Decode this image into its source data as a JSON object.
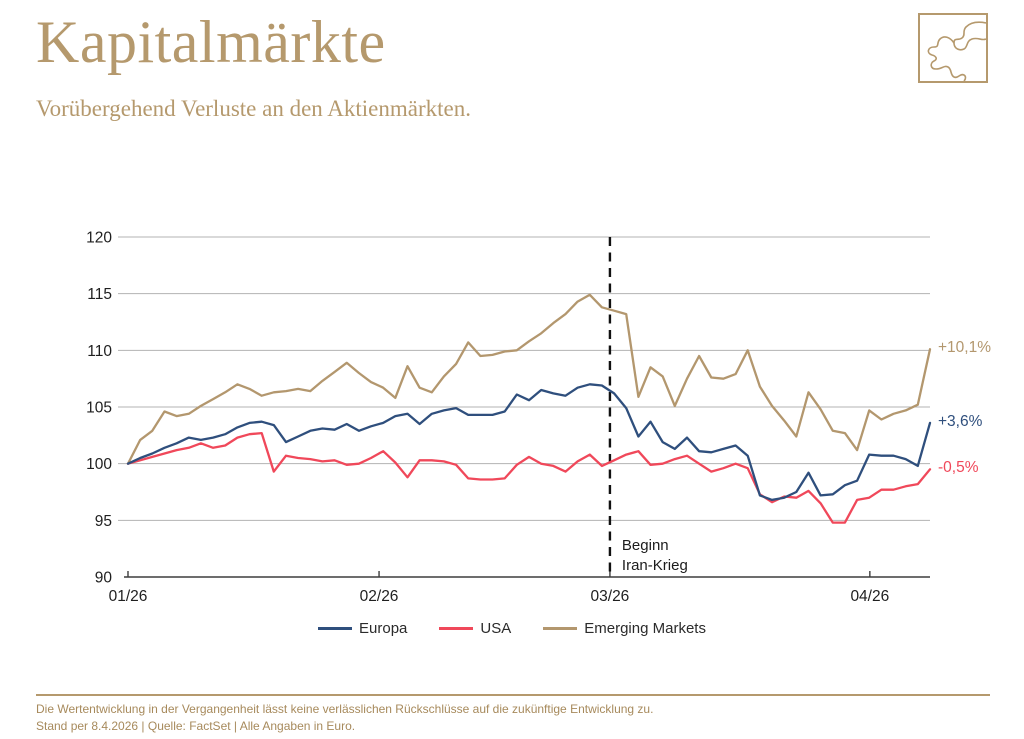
{
  "header": {
    "title": "Kapitalmärkte",
    "subtitle": "Vorübergehend Verluste an den Aktienmärkten."
  },
  "colors": {
    "accent": "#b5996d",
    "grid": "#b3b3b3",
    "axis": "#3d3d3d",
    "text": "#1f1f1f",
    "event_line": "#111111"
  },
  "chart_data": {
    "type": "line",
    "title": "",
    "xlabel": "",
    "ylabel": "",
    "baseline": 100,
    "grid": true,
    "legend_position": "bottom",
    "y_axis": {
      "min": 90,
      "max": 120,
      "ticks": [
        90,
        95,
        100,
        105,
        110,
        115,
        120
      ]
    },
    "x_axis": {
      "tick_labels": [
        "01/26",
        "02/26",
        "03/26",
        "04/26"
      ],
      "tick_indices": [
        0,
        20.66,
        39.66,
        61.05
      ]
    },
    "event_line": {
      "index": 39.66,
      "label_line1": "Beginn",
      "label_line2": "Iran-Krieg"
    },
    "series": [
      {
        "name": "Europa",
        "color": "#2f4f7d",
        "end_label": "+3,6%",
        "values": [
          100.0,
          100.5,
          100.9,
          101.4,
          101.8,
          102.3,
          102.1,
          102.3,
          102.6,
          103.2,
          103.6,
          103.7,
          103.4,
          101.9,
          102.4,
          102.9,
          103.1,
          103.0,
          103.5,
          102.9,
          103.3,
          103.6,
          104.2,
          104.4,
          103.5,
          104.4,
          104.7,
          104.9,
          104.3,
          104.3,
          104.3,
          104.6,
          106.1,
          105.6,
          106.5,
          106.2,
          106.0,
          106.7,
          107.0,
          106.9,
          106.2,
          104.9,
          102.4,
          103.7,
          101.9,
          101.3,
          102.3,
          101.1,
          101.0,
          101.3,
          101.6,
          100.7,
          97.2,
          96.8,
          97.0,
          97.5,
          99.2,
          97.2,
          97.3,
          98.1,
          98.5,
          100.8,
          100.7,
          100.7,
          100.4,
          99.8,
          103.6
        ]
      },
      {
        "name": "USA",
        "color": "#f0485a",
        "end_label": "-0,5%",
        "values": [
          100.0,
          100.3,
          100.6,
          100.9,
          101.2,
          101.4,
          101.8,
          101.4,
          101.6,
          102.3,
          102.6,
          102.7,
          99.3,
          100.7,
          100.5,
          100.4,
          100.2,
          100.3,
          99.9,
          100.0,
          100.5,
          101.1,
          100.1,
          98.8,
          100.3,
          100.3,
          100.2,
          99.9,
          98.7,
          98.6,
          98.6,
          98.7,
          99.9,
          100.6,
          100.0,
          99.8,
          99.3,
          100.2,
          100.8,
          99.8,
          100.3,
          100.8,
          101.1,
          99.9,
          100.0,
          100.4,
          100.7,
          100.0,
          99.3,
          99.6,
          100.0,
          99.6,
          97.3,
          96.6,
          97.1,
          97.0,
          97.6,
          96.5,
          94.8,
          94.8,
          96.8,
          97.0,
          97.7,
          97.7,
          98.0,
          98.2,
          99.5
        ]
      },
      {
        "name": "Emerging Markets",
        "color": "#b3976e",
        "end_label": "+10,1%",
        "values": [
          100.0,
          102.1,
          102.9,
          104.6,
          104.2,
          104.4,
          105.1,
          105.7,
          106.3,
          107.0,
          106.6,
          106.0,
          106.3,
          106.4,
          106.6,
          106.4,
          107.3,
          108.1,
          108.9,
          108.0,
          107.2,
          106.7,
          105.8,
          108.6,
          106.7,
          106.3,
          107.7,
          108.8,
          110.7,
          109.5,
          109.6,
          109.9,
          110.0,
          110.8,
          111.5,
          112.4,
          113.2,
          114.3,
          114.9,
          113.8,
          113.5,
          113.2,
          105.9,
          108.5,
          107.7,
          105.1,
          107.5,
          109.5,
          107.6,
          107.5,
          107.9,
          110.0,
          106.8,
          105.1,
          103.8,
          102.4,
          106.3,
          104.8,
          102.9,
          102.7,
          101.2,
          104.7,
          103.9,
          104.4,
          104.7,
          105.2,
          110.1
        ]
      }
    ]
  },
  "footer": {
    "disclaimer": "Die Wertentwicklung in der Vergangenheit lässt keine verlässlichen Rückschlüsse auf die zukünftige Entwicklung zu.",
    "source_line": "Stand per 8.4.2026 | Quelle: FactSet | Alle Angaben in Euro."
  }
}
